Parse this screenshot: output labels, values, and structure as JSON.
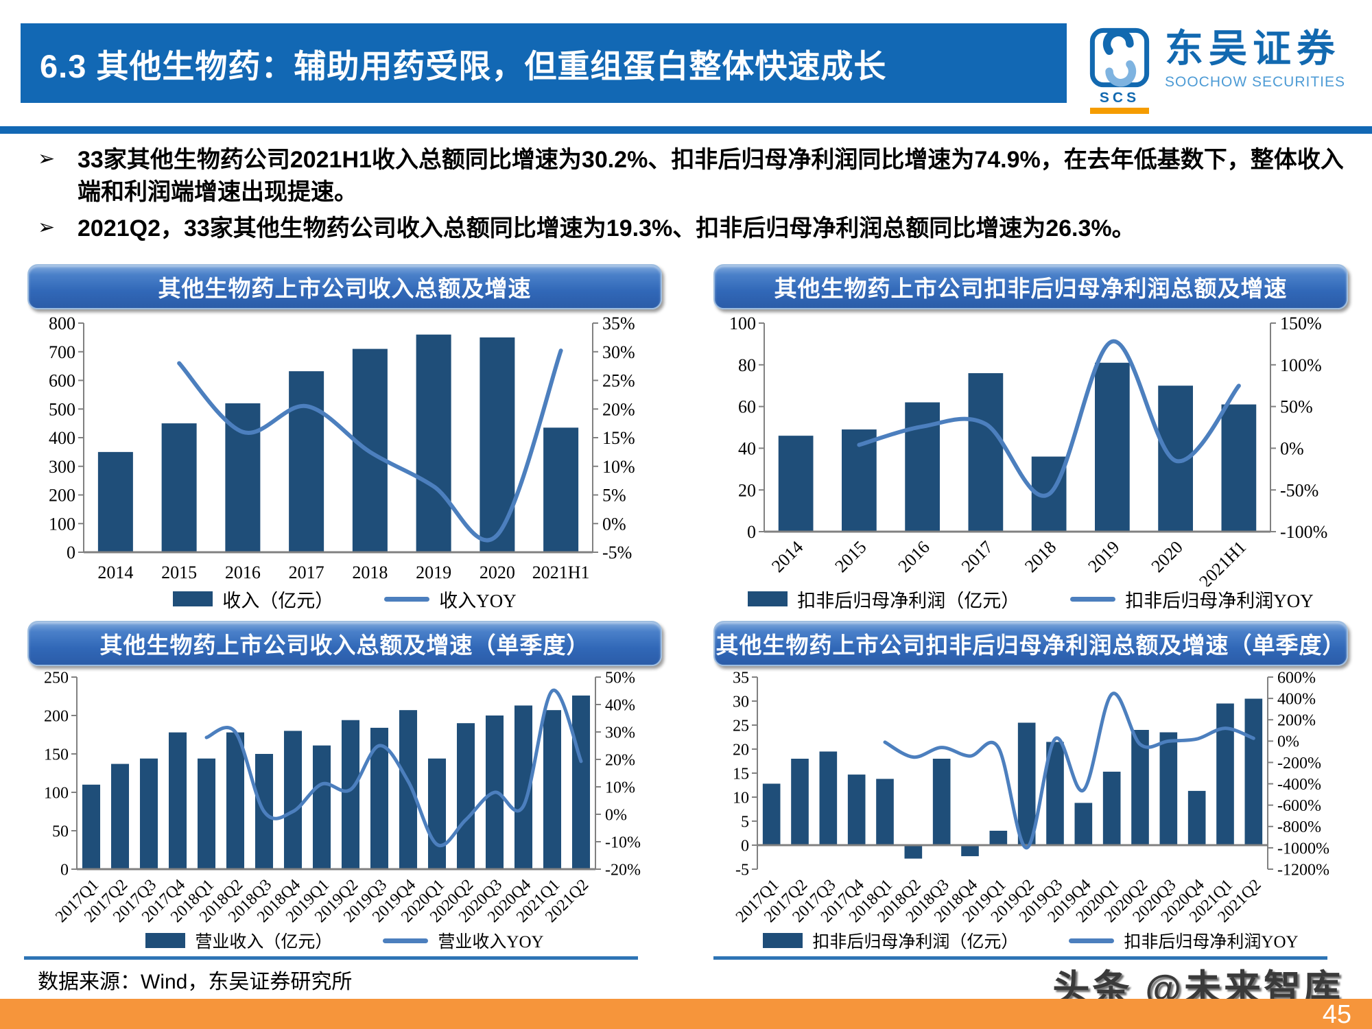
{
  "header": {
    "title": "6.3 其他生物药：辅助用药受限，但重组蛋白整体快速成长",
    "page_number": "45"
  },
  "logo": {
    "abbr": "SCS",
    "cn": "东吴证券",
    "en": "SOOCHOW SECURITIES"
  },
  "bullets": [
    {
      "marker": "➢",
      "text": "33家其他生物药公司2021H1收入总额同比增速为30.2%、扣非后归母净利润同比增速为74.9%，在去年低基数下，整体收入端和利润端增速出现提速。"
    },
    {
      "marker": "➢",
      "text": "2021Q2，33家其他生物药公司收入总额同比增速为19.3%、扣非后归母净利润总额同比增速为26.3%。"
    }
  ],
  "footer": {
    "source": "数据来源：Wind，东吴证券研究所",
    "watermark": "头条 @未来智库"
  },
  "colors": {
    "header_blue": "#1268B4",
    "bar": "#1F4E79",
    "line": "#4C7FBE",
    "axis": "#808080",
    "separator": "#2E74B5",
    "orange_bar": "#F6953B",
    "logo_blue": "#1269B0",
    "logo_light_blue": "#7EB3E0",
    "logo_orange": "#F59C00"
  },
  "chart_data": [
    {
      "type": "combo_bar_line",
      "title": "其他生物药上市公司收入总额及增速",
      "categories": [
        "2014",
        "2015",
        "2016",
        "2017",
        "2018",
        "2019",
        "2020",
        "2021H1"
      ],
      "bar_series": {
        "name": "收入（亿元）",
        "values": [
          350,
          450,
          520,
          632,
          710,
          760,
          750,
          435
        ]
      },
      "line_series": {
        "name": "收入YOY",
        "values": [
          null,
          28,
          16,
          20.5,
          12.5,
          6.5,
          -2,
          30.2
        ]
      },
      "y_left": {
        "min": 0,
        "max": 800,
        "step": 100
      },
      "y_right": {
        "min": -5,
        "max": 35,
        "step": 5,
        "suffix": "%"
      },
      "x_label_rotate": false,
      "grid": false,
      "legend_position": "bottom"
    },
    {
      "type": "combo_bar_line",
      "title": "其他生物药上市公司扣非后归母净利润总额及增速",
      "categories": [
        "2014",
        "2015",
        "2016",
        "2017",
        "2018",
        "2019",
        "2020",
        "2021H1"
      ],
      "bar_series": {
        "name": "扣非后归母净利润（亿元）",
        "values": [
          46,
          49,
          62,
          76,
          36,
          81,
          70,
          61
        ]
      },
      "line_series": {
        "name": "扣非后归母净利润YOY",
        "values": [
          null,
          4,
          26,
          29,
          -55,
          128,
          -15,
          74.9
        ]
      },
      "y_left": {
        "min": 0,
        "max": 100,
        "step": 20
      },
      "y_right": {
        "min": -100,
        "max": 150,
        "step": 50,
        "suffix": "%"
      },
      "x_label_rotate": true,
      "grid": false,
      "legend_position": "bottom"
    },
    {
      "type": "combo_bar_line",
      "title": "其他生物药上市公司收入总额及增速（单季度）",
      "categories": [
        "2017Q1",
        "2017Q2",
        "2017Q3",
        "2017Q4",
        "2018Q1",
        "2018Q2",
        "2018Q3",
        "2018Q4",
        "2019Q1",
        "2019Q2",
        "2019Q3",
        "2019Q4",
        "2020Q1",
        "2020Q2",
        "2020Q3",
        "2020Q4",
        "2021Q1",
        "2021Q2"
      ],
      "bar_series": {
        "name": "营业收入（亿元）",
        "values": [
          110,
          137,
          144,
          178,
          144,
          178,
          150,
          180,
          161,
          194,
          184,
          207,
          144,
          190,
          200,
          213,
          207,
          226
        ]
      },
      "line_series": {
        "name": "营业收入YOY",
        "values": [
          null,
          null,
          null,
          null,
          28,
          30,
          1,
          1,
          11,
          9,
          25,
          12,
          -11,
          -2,
          8,
          3,
          45,
          19.3
        ]
      },
      "y_left": {
        "min": 0,
        "max": 250,
        "step": 50
      },
      "y_right": {
        "min": -20,
        "max": 50,
        "step": 10,
        "suffix": "%"
      },
      "x_label_rotate": true,
      "grid": false,
      "legend_position": "bottom"
    },
    {
      "type": "combo_bar_line",
      "title": "其他生物药上市公司扣非后归母净利润总额及增速（单季度）",
      "categories": [
        "2017Q1",
        "2017Q2",
        "2017Q3",
        "2017Q4",
        "2018Q1",
        "2018Q2",
        "2018Q3",
        "2018Q4",
        "2019Q1",
        "2019Q2",
        "2019Q3",
        "2019Q4",
        "2020Q1",
        "2020Q2",
        "2020Q3",
        "2020Q4",
        "2021Q1",
        "2021Q2"
      ],
      "bar_series": {
        "name": "扣非后归母净利润（亿元）",
        "values": [
          12.8,
          18,
          19.5,
          14.7,
          13.8,
          -2.8,
          18,
          -2.3,
          3,
          25.5,
          21.5,
          8.8,
          15.3,
          24,
          23.5,
          11.3,
          29.5,
          30.5
        ]
      },
      "line_series": {
        "name": "扣非后归母净利润YOY",
        "values": [
          null,
          null,
          null,
          null,
          -10,
          -150,
          -60,
          -140,
          -60,
          -1000,
          20,
          -460,
          440,
          -30,
          0,
          20,
          120,
          26.3
        ]
      },
      "y_left": {
        "min": -5,
        "max": 35,
        "step": 5
      },
      "y_right": {
        "min": -1200,
        "max": 600,
        "step": 200,
        "suffix": "%"
      },
      "x_label_rotate": true,
      "grid": false,
      "legend_position": "bottom"
    }
  ]
}
